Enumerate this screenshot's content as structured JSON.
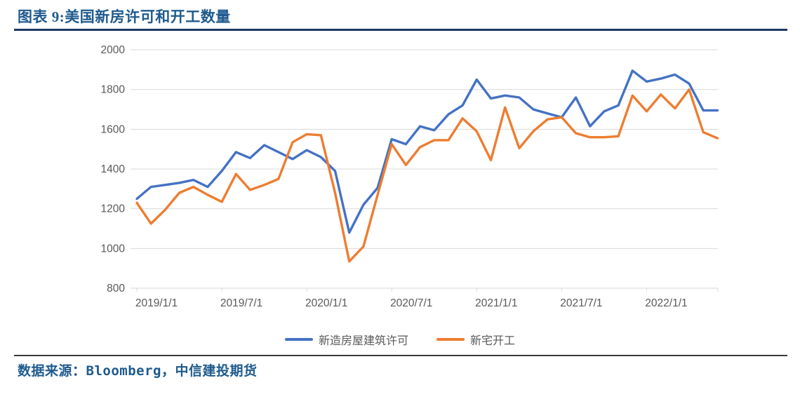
{
  "page": {
    "title": "图表 9:美国新房许可和开工数量",
    "source": "数据来源：Bloomberg，中信建投期货"
  },
  "colors": {
    "permits_line": "#4472C4",
    "starts_line": "#ED7D31",
    "gridline": "#D9D9D9",
    "axis_text": "#595959",
    "title_text": "#1E5A8D",
    "title_rule": "#1F3864",
    "footer_rule": "#3A3A3A"
  },
  "chart_data": {
    "type": "line",
    "title": "美国新房许可和开工数量",
    "x_start": "2019/1/1",
    "x_interval": "monthly",
    "x_tick_labels": [
      "2019/1/1",
      "2019/7/1",
      "2020/1/1",
      "2020/7/1",
      "2021/1/1",
      "2021/7/1",
      "2022/1/1"
    ],
    "x_tick_month_index": [
      0,
      6,
      12,
      18,
      24,
      30,
      36
    ],
    "y_ticks": [
      800,
      1000,
      1200,
      1400,
      1600,
      1800,
      2000
    ],
    "ylim": [
      800,
      2000
    ],
    "grid": "horizontal",
    "legend_position": "bottom",
    "series": [
      {
        "name": "新造房屋建筑许可",
        "color_key": "permits_line",
        "values": [
          1250,
          1310,
          1320,
          1330,
          1345,
          1310,
          1390,
          1485,
          1455,
          1520,
          1485,
          1450,
          1495,
          1460,
          1390,
          1080,
          1220,
          1305,
          1550,
          1525,
          1615,
          1595,
          1675,
          1720,
          1850,
          1755,
          1770,
          1760,
          1700,
          1680,
          1660,
          1760,
          1615,
          1690,
          1720,
          1895,
          1840,
          1855,
          1875,
          1830,
          1695,
          1695
        ]
      },
      {
        "name": "新宅开工",
        "color_key": "starts_line",
        "values": [
          1230,
          1125,
          1195,
          1280,
          1310,
          1270,
          1235,
          1375,
          1295,
          1320,
          1350,
          1535,
          1575,
          1570,
          1280,
          935,
          1010,
          1270,
          1525,
          1420,
          1510,
          1545,
          1545,
          1655,
          1590,
          1445,
          1710,
          1505,
          1590,
          1650,
          1660,
          1580,
          1560,
          1560,
          1565,
          1770,
          1690,
          1775,
          1705,
          1800,
          1585,
          1555
        ]
      }
    ]
  }
}
